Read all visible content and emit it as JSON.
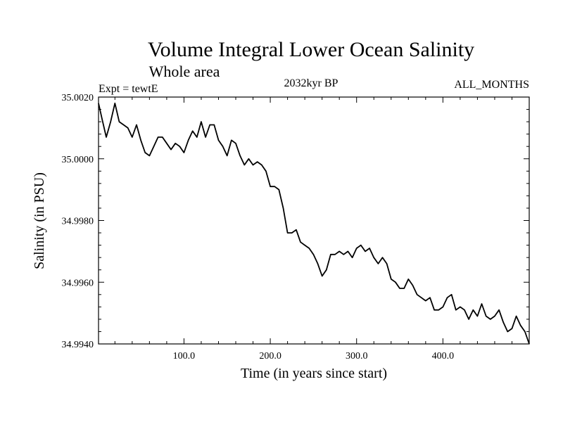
{
  "chart_data": {
    "type": "line",
    "title": "Volume Integral Lower Ocean Salinity",
    "subtitle": "Whole area",
    "expt_label": "Expt = tewtE",
    "period_label": "2032kyr BP",
    "months_label": "ALL_MONTHS",
    "xlabel": "Time (in years since start)",
    "ylabel": "Salinity (in PSU)",
    "xlim": [
      1,
      500
    ],
    "ylim": [
      34.994,
      35.002
    ],
    "x_ticks": [
      100,
      200,
      300,
      400
    ],
    "x_tick_labels": [
      "100.0",
      "200.0",
      "300.0",
      "400.0"
    ],
    "y_ticks": [
      34.994,
      34.996,
      34.998,
      35.0,
      35.002
    ],
    "y_tick_labels": [
      "34.9940",
      "34.9960",
      "34.9980",
      "35.0000",
      "35.0020"
    ],
    "series": [
      {
        "name": "Salinity",
        "color": "#000000",
        "x": [
          1,
          5,
          10,
          15,
          20,
          25,
          30,
          35,
          40,
          45,
          50,
          55,
          60,
          65,
          70,
          75,
          80,
          85,
          90,
          95,
          100,
          105,
          110,
          115,
          120,
          125,
          130,
          135,
          140,
          145,
          150,
          155,
          160,
          165,
          170,
          175,
          180,
          185,
          190,
          195,
          200,
          205,
          210,
          215,
          220,
          225,
          230,
          235,
          240,
          245,
          250,
          255,
          260,
          265,
          270,
          275,
          280,
          285,
          290,
          295,
          300,
          305,
          310,
          315,
          320,
          325,
          330,
          335,
          340,
          345,
          350,
          355,
          360,
          365,
          370,
          375,
          380,
          385,
          390,
          395,
          400,
          405,
          410,
          415,
          420,
          425,
          430,
          435,
          440,
          445,
          450,
          455,
          460,
          465,
          470,
          475,
          480,
          485,
          490,
          495,
          500
        ],
        "values": [
          35.0018,
          35.0013,
          35.0007,
          35.0012,
          35.0018,
          35.0012,
          35.0011,
          35.001,
          35.0007,
          35.0011,
          35.0006,
          35.0002,
          35.0001,
          35.0004,
          35.0007,
          35.0007,
          35.0005,
          35.0003,
          35.0005,
          35.0004,
          35.0002,
          35.0006,
          35.0009,
          35.0007,
          35.0012,
          35.0007,
          35.0011,
          35.0011,
          35.0006,
          35.0004,
          35.0001,
          35.0006,
          35.0005,
          35.0001,
          34.9998,
          35.0,
          34.9998,
          34.9999,
          34.9998,
          34.9996,
          34.9991,
          34.9991,
          34.999,
          34.9984,
          34.9976,
          34.9976,
          34.9977,
          34.9973,
          34.9972,
          34.9971,
          34.9969,
          34.9966,
          34.9962,
          34.9964,
          34.9969,
          34.9969,
          34.997,
          34.9969,
          34.997,
          34.9968,
          34.9971,
          34.9972,
          34.997,
          34.9971,
          34.9968,
          34.9966,
          34.9968,
          34.9966,
          34.9961,
          34.996,
          34.9958,
          34.9958,
          34.9961,
          34.9959,
          34.9956,
          34.9955,
          34.9954,
          34.9955,
          34.9951,
          34.9951,
          34.9952,
          34.9955,
          34.9956,
          34.9951,
          34.9952,
          34.9951,
          34.9948,
          34.9951,
          34.9949,
          34.9953,
          34.9949,
          34.9948,
          34.9949,
          34.9951,
          34.9947,
          34.9944,
          34.9945,
          34.9949,
          34.9946,
          34.9944,
          34.994
        ]
      }
    ]
  }
}
